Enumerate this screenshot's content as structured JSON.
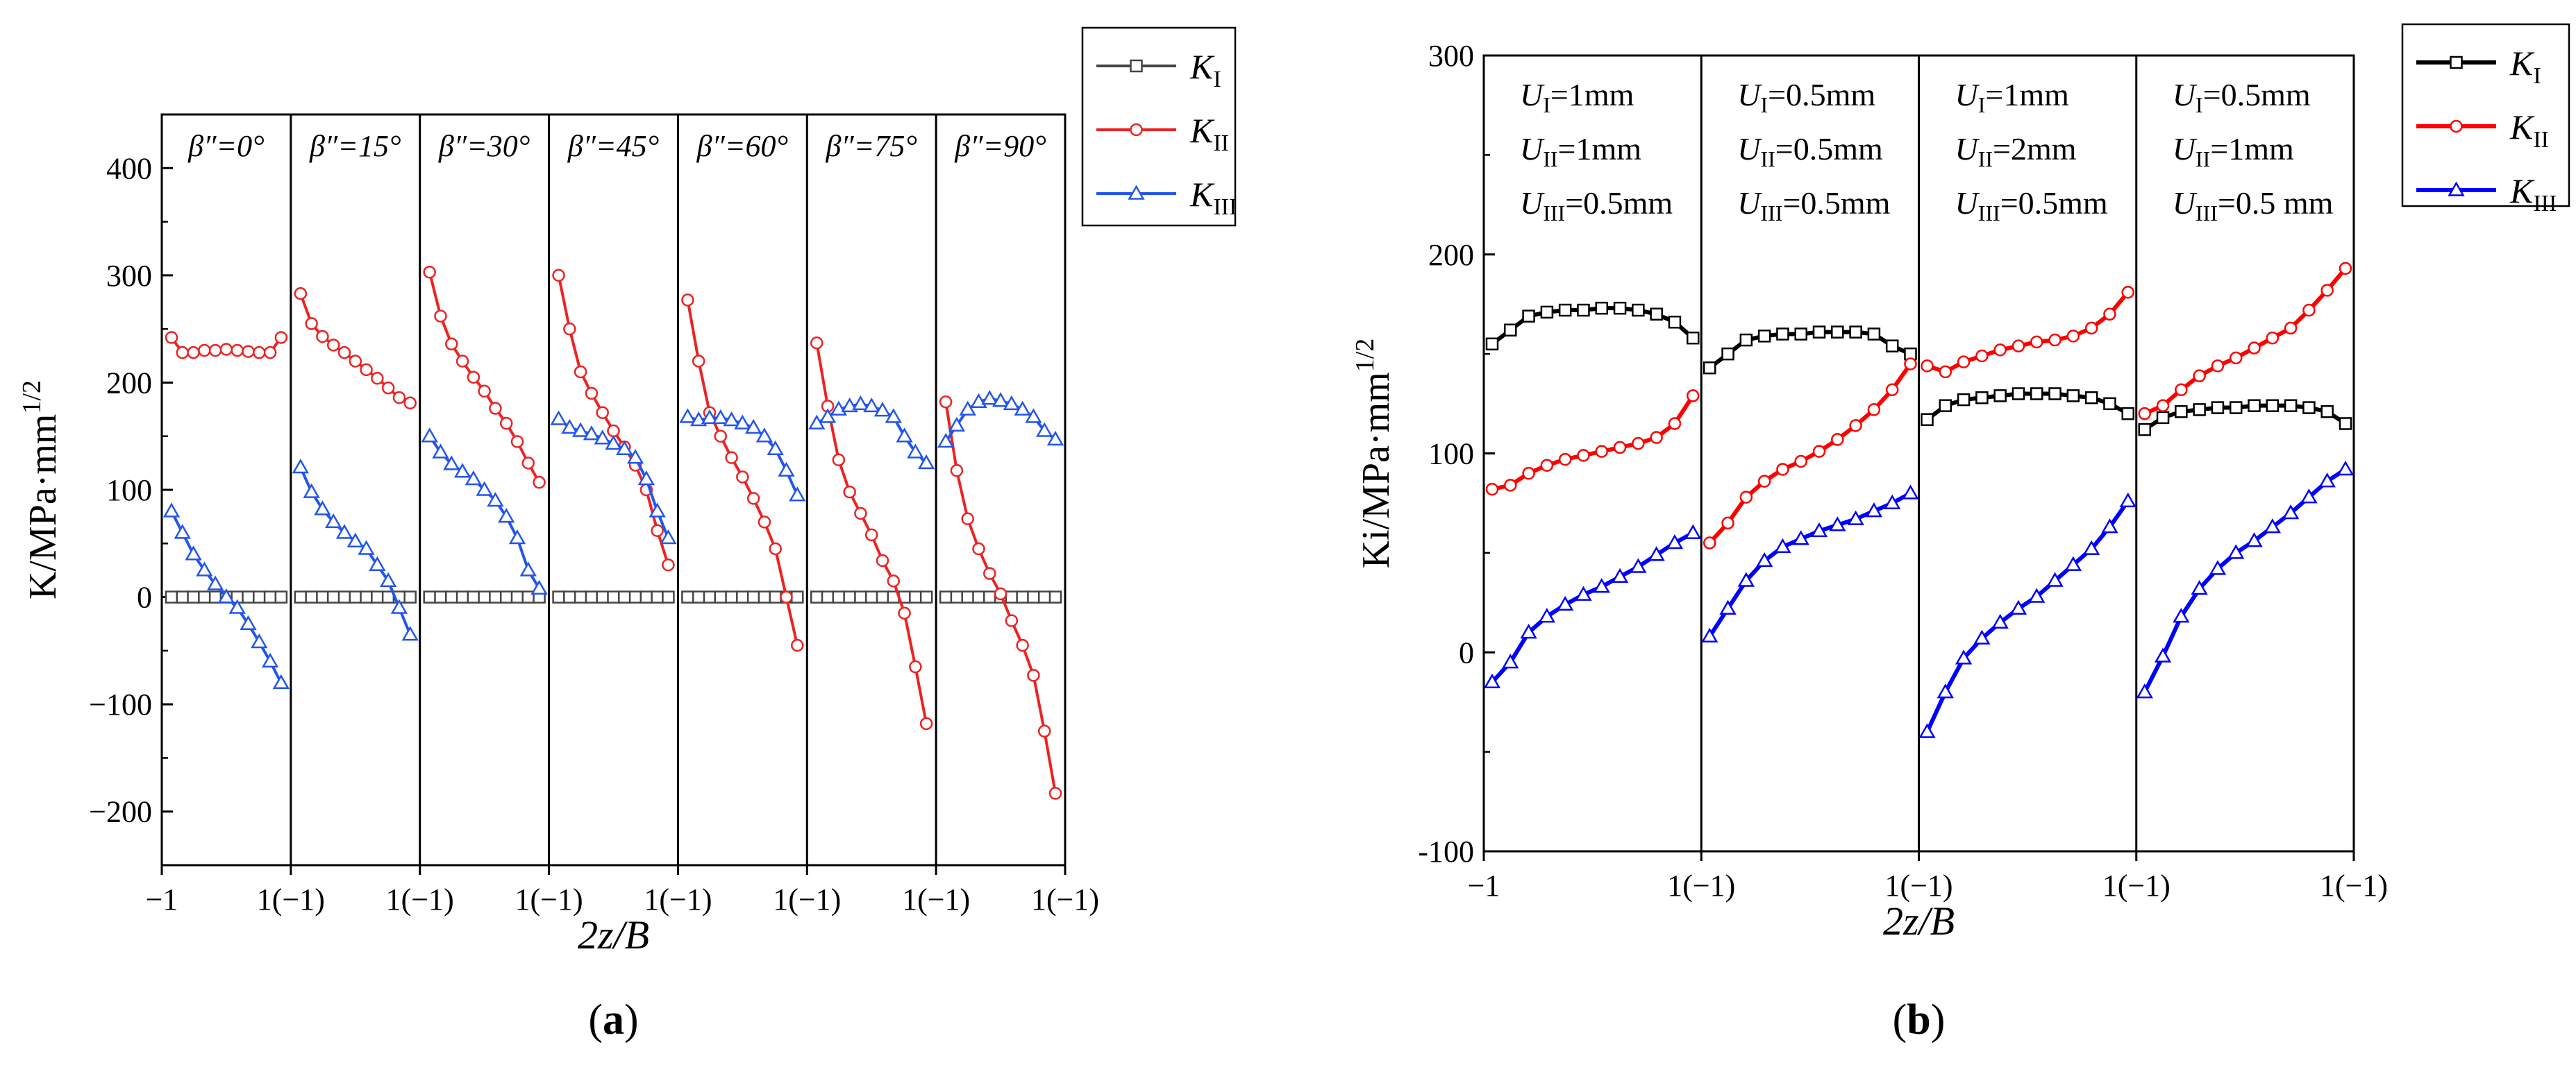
{
  "chart_data": [
    {
      "type": "line",
      "panel_label": "a",
      "xlabel": "2z/B",
      "ylabel": "K/MPa·mm",
      "ylabel_sup": "1/2",
      "ylim": [
        -250,
        450
      ],
      "yticks": [
        -200,
        -100,
        0,
        100,
        200,
        300,
        400
      ],
      "ytick_labels": [
        "−200",
        "−100",
        "0",
        "100",
        "200",
        "300",
        "400"
      ],
      "xtick_labels": [
        "−1",
        "1(−1)",
        "1(−1)",
        "1(−1)",
        "1(−1)",
        "1(−1)",
        "1(−1)",
        "1(−1)"
      ],
      "legend": [
        {
          "key": "KI",
          "main": "K",
          "sub": "I",
          "color": "#444444",
          "marker": "square"
        },
        {
          "key": "KII",
          "main": "K",
          "sub": "II",
          "color": "#ee2222",
          "marker": "circle"
        },
        {
          "key": "KIII",
          "main": "K",
          "sub": "III",
          "color": "#2255ee",
          "marker": "triangle"
        }
      ],
      "segments": [
        {
          "label": "β″=0°",
          "KI": [
            0,
            0,
            0,
            0,
            0,
            0,
            0,
            0,
            0,
            0,
            0
          ],
          "KII": [
            242,
            228,
            228,
            230,
            230,
            231,
            230,
            229,
            228,
            228,
            242
          ],
          "KIII": [
            80,
            60,
            40,
            25,
            12,
            0,
            -10,
            -25,
            -42,
            -60,
            -80
          ]
        },
        {
          "label": "β″=15°",
          "KI": [
            0,
            0,
            0,
            0,
            0,
            0,
            0,
            0,
            0,
            0,
            0
          ],
          "KII": [
            283,
            255,
            243,
            235,
            228,
            220,
            212,
            204,
            195,
            186,
            181
          ],
          "KIII": [
            121,
            98,
            82,
            70,
            60,
            52,
            45,
            30,
            15,
            -10,
            -35
          ]
        },
        {
          "label": "β″=30°",
          "KI": [
            0,
            0,
            0,
            0,
            0,
            0,
            0,
            0,
            0,
            0,
            0
          ],
          "KII": [
            303,
            262,
            236,
            220,
            205,
            192,
            176,
            162,
            145,
            125,
            107
          ],
          "KIII": [
            150,
            135,
            124,
            117,
            110,
            100,
            90,
            75,
            55,
            25,
            8
          ]
        },
        {
          "label": "β″=45°",
          "KI": [
            0,
            0,
            0,
            0,
            0,
            0,
            0,
            0,
            0,
            0,
            0
          ],
          "KII": [
            300,
            250,
            210,
            190,
            172,
            155,
            140,
            123,
            100,
            62,
            30
          ],
          "KIII": [
            166,
            158,
            155,
            152,
            148,
            143,
            138,
            130,
            110,
            80,
            55
          ]
        },
        {
          "label": "β″=60°",
          "KI": [
            0,
            0,
            0,
            0,
            0,
            0,
            0,
            0,
            0,
            0,
            0
          ],
          "KII": [
            277,
            220,
            172,
            150,
            130,
            112,
            92,
            70,
            45,
            0,
            -45
          ],
          "KIII": [
            168,
            165,
            167,
            167,
            165,
            162,
            158,
            150,
            138,
            118,
            95
          ]
        },
        {
          "label": "β″=75°",
          "KI": [
            0,
            0,
            0,
            0,
            0,
            0,
            0,
            0,
            0,
            0,
            0
          ],
          "KII": [
            237,
            178,
            128,
            98,
            78,
            58,
            34,
            15,
            -15,
            -65,
            -118
          ],
          "KIII": [
            162,
            168,
            175,
            178,
            180,
            178,
            174,
            168,
            150,
            135,
            125
          ]
        },
        {
          "label": "β″=90°",
          "KI": [
            0,
            0,
            0,
            0,
            0,
            0,
            0,
            0,
            0,
            0,
            0
          ],
          "KII": [
            182,
            118,
            73,
            45,
            22,
            3,
            -22,
            -45,
            -73,
            -125,
            -183
          ],
          "KIII": [
            145,
            160,
            175,
            182,
            185,
            183,
            180,
            175,
            168,
            155,
            147
          ]
        }
      ]
    },
    {
      "type": "line",
      "panel_label": "b",
      "xlabel": "2z/B",
      "ylabel": "Ki/MPa·mm",
      "ylabel_sup": "1/2",
      "ylim": [
        -100,
        300
      ],
      "yticks": [
        -100,
        0,
        100,
        200,
        300
      ],
      "ytick_labels": [
        "-100",
        "0",
        "100",
        "200",
        "300"
      ],
      "xtick_labels": [
        "−1",
        "1(−1)",
        "1(−1)",
        "1(−1)",
        "1(−1)"
      ],
      "legend": [
        {
          "key": "KI",
          "main": "K",
          "sub": "I",
          "color": "#000000",
          "marker": "square"
        },
        {
          "key": "KII",
          "main": "K",
          "sub": "II",
          "color": "#ff0000",
          "marker": "circle"
        },
        {
          "key": "KIII",
          "main": "K",
          "sub": "III",
          "color": "#0000ff",
          "marker": "triangle"
        }
      ],
      "segments": [
        {
          "labels": [
            {
              "sym": "U",
              "sub": "I",
              "val": "=1mm"
            },
            {
              "sym": "U",
              "sub": "II",
              "val": "=1mm"
            },
            {
              "sym": "U",
              "sub": "III",
              "val": "=0.5mm"
            }
          ],
          "KI": [
            155,
            162,
            169,
            171,
            172,
            172,
            173,
            173,
            172,
            170,
            166,
            158
          ],
          "KII": [
            82,
            84,
            90,
            94,
            97,
            99,
            101,
            103,
            105,
            108,
            115,
            129
          ],
          "KIII": [
            -15,
            -5,
            10,
            18,
            24,
            29,
            33,
            38,
            43,
            49,
            55,
            60
          ]
        },
        {
          "labels": [
            {
              "sym": "U",
              "sub": "I",
              "val": "=0.5mm"
            },
            {
              "sym": "U",
              "sub": "II",
              "val": "=0.5mm"
            },
            {
              "sym": "U",
              "sub": "III",
              "val": "=0.5mm"
            }
          ],
          "KI": [
            143,
            150,
            157,
            159,
            160,
            160,
            161,
            161,
            161,
            160,
            154,
            150
          ],
          "KII": [
            55,
            65,
            78,
            86,
            92,
            96,
            101,
            107,
            114,
            122,
            132,
            145
          ],
          "KIII": [
            8,
            22,
            36,
            46,
            53,
            57,
            61,
            64,
            67,
            71,
            75,
            80
          ]
        },
        {
          "labels": [
            {
              "sym": "U",
              "sub": "I",
              "val": "=1mm"
            },
            {
              "sym": "U",
              "sub": "II",
              "val": "=2mm"
            },
            {
              "sym": "U",
              "sub": "III",
              "val": "=0.5mm"
            }
          ],
          "KI": [
            117,
            124,
            127,
            128,
            129,
            130,
            130,
            130,
            129,
            128,
            125,
            120
          ],
          "KII": [
            144,
            141,
            146,
            149,
            152,
            154,
            156,
            157,
            159,
            163,
            170,
            181
          ],
          "KIII": [
            -40,
            -20,
            -3,
            7,
            15,
            22,
            28,
            36,
            44,
            52,
            63,
            76
          ]
        },
        {
          "labels": [
            {
              "sym": "U",
              "sub": "I",
              "val": "=0.5mm"
            },
            {
              "sym": "U",
              "sub": "II",
              "val": "=1mm"
            },
            {
              "sym": "U",
              "sub": "III",
              "val": "=0.5 mm"
            }
          ],
          "KI": [
            112,
            118,
            121,
            122,
            123,
            123,
            124,
            124,
            124,
            123,
            121,
            115
          ],
          "KII": [
            120,
            124,
            132,
            139,
            144,
            148,
            153,
            158,
            163,
            172,
            182,
            193
          ],
          "KIII": [
            -20,
            -2,
            18,
            32,
            42,
            50,
            56,
            63,
            70,
            78,
            86,
            92
          ]
        }
      ]
    }
  ]
}
